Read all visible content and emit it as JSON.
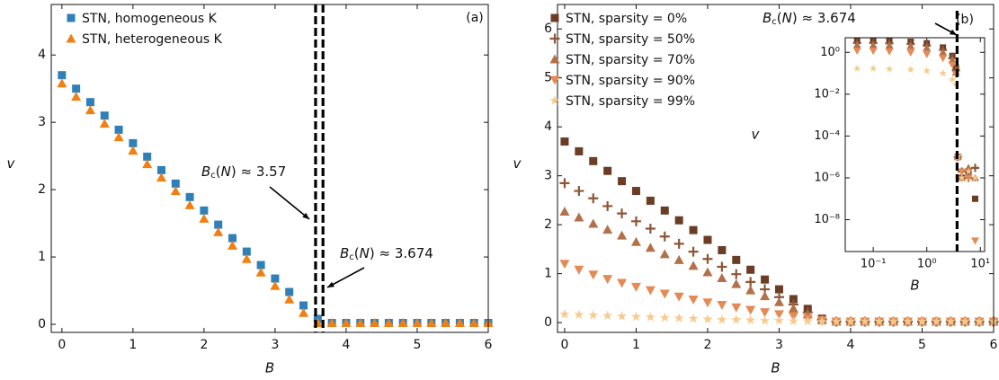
{
  "chart_data": [
    {
      "type": "scatter",
      "panel_label": "(a)",
      "xlabel": "B",
      "ylabel": "v",
      "xlim": [
        -0.15,
        6.0
      ],
      "ylim": [
        -0.12,
        4.75
      ],
      "xticks": [
        0,
        1,
        2,
        3,
        4,
        5,
        6
      ],
      "yticks": [
        0,
        1,
        2,
        3,
        4
      ],
      "x": [
        0,
        0.2,
        0.4,
        0.6,
        0.8,
        1.0,
        1.2,
        1.4,
        1.6,
        1.8,
        2.0,
        2.2,
        2.4,
        2.6,
        2.8,
        3.0,
        3.2,
        3.4,
        3.6,
        3.8,
        4.0,
        4.2,
        4.4,
        4.6,
        4.8,
        5.0,
        5.2,
        5.4,
        5.6,
        5.8,
        6.0
      ],
      "series": [
        {
          "name": "STN, homogeneous K",
          "color": "#2f7fb8",
          "marker": "s",
          "values": [
            3.7,
            3.5,
            3.3,
            3.1,
            2.89,
            2.69,
            2.49,
            2.29,
            2.09,
            1.89,
            1.69,
            1.48,
            1.28,
            1.08,
            0.88,
            0.68,
            0.48,
            0.28,
            0.08,
            0.02,
            0.02,
            0.02,
            0.02,
            0.02,
            0.02,
            0.02,
            0.02,
            0.02,
            0.02,
            0.02,
            0.02
          ]
        },
        {
          "name": "STN, heterogeneous K",
          "color": "#f07f14",
          "marker": "^",
          "values": [
            3.58,
            3.38,
            3.18,
            2.98,
            2.78,
            2.58,
            2.38,
            2.18,
            1.98,
            1.77,
            1.57,
            1.37,
            1.17,
            0.97,
            0.77,
            0.57,
            0.37,
            0.17,
            0.02,
            0.02,
            0.02,
            0.02,
            0.02,
            0.02,
            0.02,
            0.02,
            0.02,
            0.02,
            0.02,
            0.02,
            0.02
          ]
        }
      ],
      "vlines": [
        3.57,
        3.674
      ],
      "annotations": [
        "Bc(N) ≈ 3.57",
        "Bc(N) ≈ 3.674"
      ]
    },
    {
      "type": "scatter",
      "xlabel": "B",
      "ylabel": "v",
      "xlim": [
        -0.1,
        6.0
      ],
      "ylim": [
        -0.2,
        6.5
      ],
      "xticks": [
        0,
        1,
        2,
        3,
        4,
        5,
        6
      ],
      "yticks": [
        0,
        1,
        2,
        3,
        4,
        5,
        6
      ],
      "x": [
        0,
        0.2,
        0.4,
        0.6,
        0.8,
        1.0,
        1.2,
        1.4,
        1.6,
        1.8,
        2.0,
        2.2,
        2.4,
        2.6,
        2.8,
        3.0,
        3.2,
        3.4,
        3.6,
        3.8,
        4.0,
        4.2,
        4.4,
        4.6,
        4.8,
        5.0,
        5.2,
        5.4,
        5.6,
        5.8,
        6.0
      ],
      "series": [
        {
          "name": "STN, sparsity = 0%",
          "color": "#6b3d24",
          "marker": "s",
          "values": [
            3.7,
            3.5,
            3.3,
            3.1,
            2.89,
            2.69,
            2.49,
            2.29,
            2.09,
            1.89,
            1.69,
            1.48,
            1.28,
            1.08,
            0.88,
            0.68,
            0.48,
            0.28,
            0.08,
            0.02,
            0.02,
            0.02,
            0.02,
            0.02,
            0.02,
            0.02,
            0.02,
            0.02,
            0.02,
            0.02,
            0.02
          ]
        },
        {
          "name": "STN, sparsity = 50%",
          "color": "#8c5638",
          "marker": "+",
          "values": [
            2.85,
            2.69,
            2.54,
            2.38,
            2.23,
            2.07,
            1.92,
            1.76,
            1.61,
            1.45,
            1.3,
            1.14,
            0.99,
            0.83,
            0.68,
            0.52,
            0.37,
            0.21,
            0.06,
            0.02,
            0.02,
            0.02,
            0.02,
            0.02,
            0.02,
            0.02,
            0.02,
            0.02,
            0.02,
            0.02,
            0.02
          ]
        },
        {
          "name": "STN, sparsity = 70%",
          "color": "#b2714b",
          "marker": "^",
          "values": [
            2.27,
            2.15,
            2.02,
            1.9,
            1.78,
            1.65,
            1.53,
            1.4,
            1.28,
            1.16,
            1.03,
            0.91,
            0.79,
            0.66,
            0.54,
            0.42,
            0.29,
            0.17,
            0.05,
            0.02,
            0.02,
            0.02,
            0.02,
            0.02,
            0.02,
            0.02,
            0.02,
            0.02,
            0.02,
            0.02,
            0.02
          ]
        },
        {
          "name": "STN, sparsity = 90%",
          "color": "#e58a55",
          "marker": "v",
          "values": [
            1.2,
            1.08,
            0.98,
            0.89,
            0.81,
            0.73,
            0.66,
            0.59,
            0.53,
            0.47,
            0.41,
            0.36,
            0.31,
            0.26,
            0.21,
            0.17,
            0.13,
            0.09,
            0.05,
            0.02,
            0.02,
            0.02,
            0.02,
            0.02,
            0.02,
            0.02,
            0.02,
            0.02,
            0.02,
            0.02,
            0.02
          ]
        },
        {
          "name": "STN, sparsity = 99%",
          "color": "#f8c98c",
          "marker": "*",
          "values": [
            0.17,
            0.16,
            0.15,
            0.14,
            0.13,
            0.12,
            0.11,
            0.1,
            0.09,
            0.08,
            0.07,
            0.06,
            0.06,
            0.05,
            0.04,
            0.04,
            0.03,
            0.03,
            0.02,
            0.02,
            0.02,
            0.02,
            0.02,
            0.02,
            0.02,
            0.02,
            0.02,
            0.02,
            0.02,
            0.02,
            0.02
          ]
        }
      ]
    },
    {
      "type": "scatter",
      "panel_label": "(b)",
      "xlabel": "B",
      "ylabel": "v",
      "xscale": "log",
      "yscale": "log",
      "xlim": [
        0.03,
        12
      ],
      "ylim": [
        3e-10,
        5
      ],
      "xticks": [
        {
          "value": 0.1,
          "label": "10⁻¹"
        },
        {
          "value": 1,
          "label": "10⁰"
        },
        {
          "value": 10,
          "label": "10¹"
        }
      ],
      "yticks": [
        {
          "value": 1e-08,
          "label": "10⁻⁸"
        },
        {
          "value": 1e-06,
          "label": "10⁻⁶"
        },
        {
          "value": 0.0001,
          "label": "10⁻⁴"
        },
        {
          "value": 0.01,
          "label": "10⁻²"
        },
        {
          "value": 1,
          "label": "10⁰"
        }
      ],
      "x": [
        0.05,
        0.1,
        0.2,
        0.5,
        1,
        2,
        3,
        3.5,
        3.8,
        4.5,
        6,
        8
      ],
      "series": [
        {
          "color": "#6b3d24",
          "marker": "s",
          "values": [
            3.65,
            3.6,
            3.5,
            3.2,
            2.7,
            1.7,
            0.68,
            0.18,
            1e-05,
            1e-06,
            2e-06,
            1e-07
          ]
        },
        {
          "color": "#8c5638",
          "marker": "+",
          "values": [
            2.8,
            2.8,
            2.7,
            2.5,
            2.1,
            1.3,
            0.52,
            0.14,
            1e-05,
            2e-06,
            1e-06,
            3e-06
          ]
        },
        {
          "color": "#b2714b",
          "marker": "^",
          "values": [
            2.25,
            2.2,
            2.15,
            2.0,
            1.65,
            1.0,
            0.42,
            0.11,
            1e-05,
            1e-06,
            3e-06,
            1e-06
          ]
        },
        {
          "color": "#e58a55",
          "marker": "v",
          "values": [
            1.19,
            1.17,
            1.1,
            0.98,
            0.81,
            0.53,
            0.25,
            0.09,
            1e-05,
            2e-06,
            1e-06,
            1e-09
          ]
        },
        {
          "color": "#f8c98c",
          "marker": "*",
          "values": [
            0.17,
            0.17,
            0.16,
            0.15,
            0.13,
            0.1,
            0.05,
            0.03,
            1e-05,
            1e-06,
            2e-06,
            1e-06
          ]
        }
      ],
      "vlines": [
        3.674
      ],
      "annotations": [
        "Bc(N) ≈ 3.674"
      ]
    }
  ]
}
